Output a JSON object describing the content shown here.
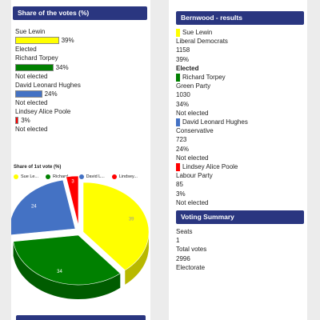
{
  "left": {
    "panel_title": "Share of the votes (%)",
    "candidates": [
      {
        "name": "Sue Lewin",
        "pct": 39,
        "pct_label": "39%",
        "status": "Elected",
        "color": "#ffff00"
      },
      {
        "name": "Richard Torpey",
        "pct": 34,
        "pct_label": "34%",
        "status": "Not elected",
        "color": "#008000"
      },
      {
        "name": "David Leonard Hughes",
        "pct": 24,
        "pct_label": "24%",
        "status": "Not elected",
        "color": "#4472c4"
      },
      {
        "name": "Lindsey Alice Poole",
        "pct": 3,
        "pct_label": "3%",
        "status": "Not elected",
        "color": "#ff0000"
      }
    ]
  },
  "chart_data": {
    "type": "pie",
    "title": "Share of 1st vote (%)",
    "legend": [
      "Sue Le...",
      "Richard...",
      "David L...",
      "Lindsey..."
    ],
    "values": [
      39,
      34,
      24,
      3
    ],
    "labels": [
      "39",
      "34",
      "24",
      "3"
    ],
    "colors": [
      "#ffff00",
      "#008000",
      "#4472c4",
      "#ff0000"
    ],
    "legend_position": "top"
  },
  "right": {
    "panel_title": "Bernwood - results",
    "candidates": [
      {
        "name": "Sue Lewin",
        "party": "Liberal Democrats",
        "votes": "1158",
        "pct": "39%",
        "status": "Elected",
        "color": "#ffff00"
      },
      {
        "name": "Richard Torpey",
        "party": "Green Party",
        "votes": "1030",
        "pct": "34%",
        "status": "Not elected",
        "color": "#008000"
      },
      {
        "name": "David Leonard Hughes",
        "party": "Conservative",
        "votes": "723",
        "pct": "24%",
        "status": "Not elected",
        "color": "#4472c4"
      },
      {
        "name": "Lindsey Alice Poole",
        "party": "Labour Party",
        "votes": "85",
        "pct": "3%",
        "status": "Not elected",
        "color": "#ff0000"
      }
    ],
    "summary_title": "Voting Summary",
    "summary": [
      {
        "label": "Seats",
        "value": "1"
      },
      {
        "label": "Total votes",
        "value": "2996"
      },
      {
        "label": "Electorate",
        "value": ""
      }
    ]
  }
}
